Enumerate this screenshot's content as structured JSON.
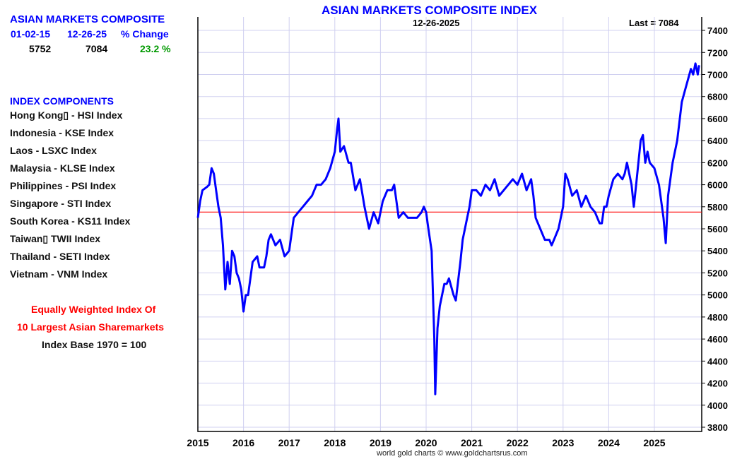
{
  "panel": {
    "title": "ASIAN MARKETS COMPOSITE",
    "headers": [
      "01-02-15",
      "12-26-25",
      "% Change"
    ],
    "values": [
      "5752",
      "7084",
      "23.2 %"
    ],
    "components_title": "INDEX COMPONENTS",
    "components": [
      "Hong Kong▯ - HSI Index",
      "Indonesia - KSE Index",
      "Laos - LSXC Index",
      "Malaysia - KLSE Index",
      "Philippines - PSI Index",
      "Singapore - STI Index",
      "South Korea - KS11 Index",
      "Taiwan▯ TWII Index",
      "Thailand - SETI Index",
      "Vietnam - VNM Index"
    ],
    "note1": "Equally Weighted Index Of",
    "note2": "10 Largest Asian Sharemarkets",
    "note3": "Index Base 1970 = 100"
  },
  "colors": {
    "line": "#0000ff",
    "reference": "#ff0000",
    "grid": "#d0d0f0",
    "up": "#009900"
  },
  "chart_data": {
    "type": "line",
    "title": "ASIAN MARKETS COMPOSITE INDEX",
    "date_label": "12-26-2025",
    "last_label": "Last = 7084",
    "footer": "world gold charts © www.goldchartsrus.com",
    "xlim": [
      2015,
      2026
    ],
    "ylim": [
      3800,
      7400
    ],
    "xticks": [
      "2015",
      "2016",
      "2017",
      "2018",
      "2019",
      "2020",
      "2021",
      "2022",
      "2023",
      "2024",
      "2025"
    ],
    "yticks": [
      "3800",
      "4000",
      "4200",
      "4400",
      "4600",
      "4800",
      "5000",
      "5200",
      "5400",
      "5600",
      "5800",
      "6000",
      "6200",
      "6400",
      "6600",
      "6800",
      "7000",
      "7200",
      "7400"
    ],
    "reference_value": 5752,
    "x": [
      2015.0,
      2015.05,
      2015.1,
      2015.2,
      2015.25,
      2015.3,
      2015.35,
      2015.4,
      2015.45,
      2015.5,
      2015.55,
      2015.6,
      2015.65,
      2015.7,
      2015.75,
      2015.8,
      2015.85,
      2015.9,
      2015.95,
      2016.0,
      2016.05,
      2016.1,
      2016.2,
      2016.3,
      2016.35,
      2016.45,
      2016.5,
      2016.55,
      2016.6,
      2016.7,
      2016.8,
      2016.9,
      2017.0,
      2017.1,
      2017.2,
      2017.3,
      2017.4,
      2017.5,
      2017.6,
      2017.7,
      2017.8,
      2017.9,
      2018.0,
      2018.05,
      2018.08,
      2018.12,
      2018.2,
      2018.3,
      2018.35,
      2018.45,
      2018.55,
      2018.65,
      2018.75,
      2018.85,
      2018.95,
      2019.05,
      2019.15,
      2019.25,
      2019.3,
      2019.4,
      2019.5,
      2019.6,
      2019.7,
      2019.8,
      2019.9,
      2019.95,
      2020.0,
      2020.05,
      2020.12,
      2020.18,
      2020.2,
      2020.25,
      2020.3,
      2020.4,
      2020.45,
      2020.5,
      2020.6,
      2020.65,
      2020.75,
      2020.8,
      2020.9,
      2020.95,
      2021.0,
      2021.1,
      2021.2,
      2021.3,
      2021.4,
      2021.5,
      2021.6,
      2021.7,
      2021.8,
      2021.9,
      2022.0,
      2022.1,
      2022.2,
      2022.3,
      2022.35,
      2022.4,
      2022.5,
      2022.6,
      2022.7,
      2022.75,
      2022.8,
      2022.9,
      2023.0,
      2023.05,
      2023.1,
      2023.2,
      2023.3,
      2023.4,
      2023.5,
      2023.6,
      2023.7,
      2023.8,
      2023.85,
      2023.9,
      2023.95,
      2024.0,
      2024.1,
      2024.2,
      2024.3,
      2024.35,
      2024.4,
      2024.5,
      2024.55,
      2024.6,
      2024.7,
      2024.75,
      2024.8,
      2024.85,
      2024.9,
      2025.0,
      2025.1,
      2025.2,
      2025.25,
      2025.3,
      2025.4,
      2025.5,
      2025.6,
      2025.7,
      2025.8,
      2025.85,
      2025.9,
      2025.95,
      2025.98
    ],
    "values": [
      5700,
      5850,
      5950,
      5980,
      6000,
      6150,
      6100,
      5950,
      5800,
      5700,
      5450,
      5050,
      5300,
      5100,
      5400,
      5350,
      5200,
      5150,
      5050,
      4850,
      5000,
      5000,
      5300,
      5350,
      5250,
      5250,
      5350,
      5500,
      5550,
      5450,
      5500,
      5350,
      5400,
      5700,
      5750,
      5800,
      5850,
      5900,
      6000,
      6000,
      6050,
      6150,
      6300,
      6500,
      6600,
      6300,
      6350,
      6200,
      6200,
      5950,
      6050,
      5800,
      5600,
      5750,
      5650,
      5850,
      5950,
      5950,
      6000,
      5700,
      5750,
      5700,
      5700,
      5700,
      5750,
      5800,
      5750,
      5600,
      5400,
      4600,
      4100,
      4700,
      4900,
      5100,
      5100,
      5150,
      5000,
      4950,
      5300,
      5500,
      5700,
      5800,
      5950,
      5950,
      5900,
      6000,
      5950,
      6050,
      5900,
      5950,
      6000,
      6050,
      6000,
      6100,
      5950,
      6050,
      5900,
      5700,
      5600,
      5500,
      5500,
      5450,
      5500,
      5600,
      5800,
      6100,
      6050,
      5900,
      5950,
      5800,
      5900,
      5800,
      5750,
      5650,
      5650,
      5800,
      5800,
      5900,
      6050,
      6100,
      6050,
      6100,
      6200,
      6000,
      5800,
      6000,
      6400,
      6450,
      6200,
      6300,
      6200,
      6150,
      6000,
      5700,
      5470,
      5900,
      6200,
      6400,
      6750,
      6900,
      7050,
      7000,
      7100,
      7000,
      7084
    ]
  }
}
